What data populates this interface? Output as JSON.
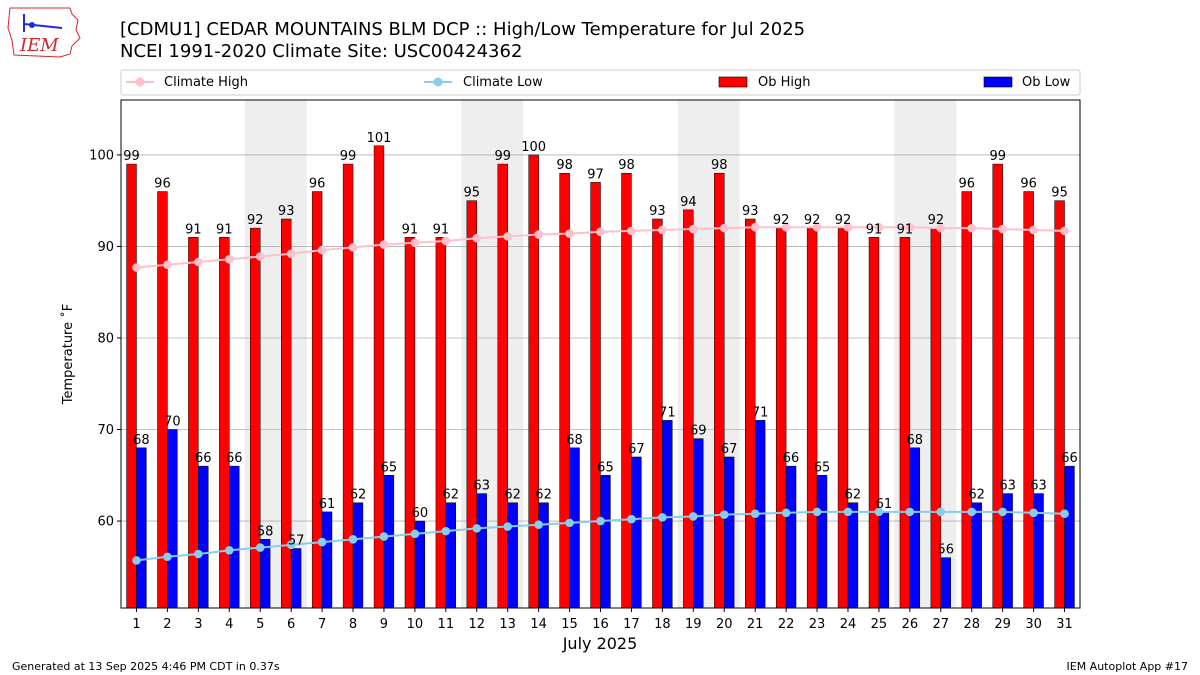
{
  "header": {
    "title_line1": "[CDMU1] CEDAR MOUNTAINS BLM DCP :: High/Low Temperature for Jul 2025",
    "title_line2": "NCEI 1991-2020 Climate Site: USC00424362",
    "logo_text": "IEM"
  },
  "footer": {
    "generated": "Generated at 13 Sep 2025 4:46 PM CDT in 0.37s",
    "app": "IEM Autoplot App #17"
  },
  "colors": {
    "ob_high": "#ff0000",
    "ob_low": "#0000ff",
    "climate_high": "#ffc0cb",
    "climate_low": "#87ceeb",
    "weekend_shade": "#eeeeee",
    "grid": "#b0b0b0"
  },
  "chart_data": {
    "type": "bar",
    "xlabel": "July 2025",
    "ylabel": "Temperature ˚F",
    "ylim": [
      50.5,
      106
    ],
    "yticks": [
      60,
      70,
      80,
      90,
      100
    ],
    "grid": "horizontal",
    "legend_position": "top",
    "categories": [
      "1",
      "2",
      "3",
      "4",
      "5",
      "6",
      "7",
      "8",
      "9",
      "10",
      "11",
      "12",
      "13",
      "14",
      "15",
      "16",
      "17",
      "18",
      "19",
      "20",
      "21",
      "22",
      "23",
      "24",
      "25",
      "26",
      "27",
      "28",
      "29",
      "30",
      "31"
    ],
    "shaded_days": [
      5,
      6,
      12,
      13,
      19,
      20,
      26,
      27
    ],
    "series": [
      {
        "name": "Ob High",
        "kind": "bar",
        "values": [
          99,
          96,
          91,
          91,
          92,
          93,
          96,
          99,
          101,
          91,
          91,
          95,
          99,
          100,
          98,
          97,
          98,
          93,
          94,
          98,
          93,
          92,
          92,
          92,
          91,
          91,
          92,
          96,
          99,
          96,
          95
        ]
      },
      {
        "name": "Ob Low",
        "kind": "bar",
        "values": [
          68,
          70,
          66,
          66,
          58,
          57,
          61,
          62,
          65,
          60,
          62,
          63,
          62,
          62,
          68,
          65,
          67,
          71,
          69,
          67,
          71,
          66,
          65,
          62,
          61,
          68,
          56,
          62,
          63,
          63,
          66
        ]
      },
      {
        "name": "Climate High",
        "kind": "line",
        "values": [
          87.7,
          88.0,
          88.3,
          88.6,
          88.9,
          89.2,
          89.6,
          89.9,
          90.2,
          90.4,
          90.6,
          90.9,
          91.1,
          91.3,
          91.4,
          91.6,
          91.7,
          91.8,
          91.9,
          92.0,
          92.1,
          92.1,
          92.1,
          92.1,
          92.1,
          92.1,
          92.0,
          92.0,
          91.9,
          91.8,
          91.7
        ]
      },
      {
        "name": "Climate Low",
        "kind": "line",
        "values": [
          55.7,
          56.1,
          56.4,
          56.8,
          57.1,
          57.4,
          57.7,
          58.0,
          58.3,
          58.6,
          58.9,
          59.2,
          59.4,
          59.6,
          59.8,
          60.0,
          60.2,
          60.4,
          60.5,
          60.7,
          60.8,
          60.9,
          61.0,
          61.0,
          61.0,
          61.0,
          61.0,
          61.0,
          61.0,
          60.9,
          60.8
        ]
      }
    ]
  }
}
